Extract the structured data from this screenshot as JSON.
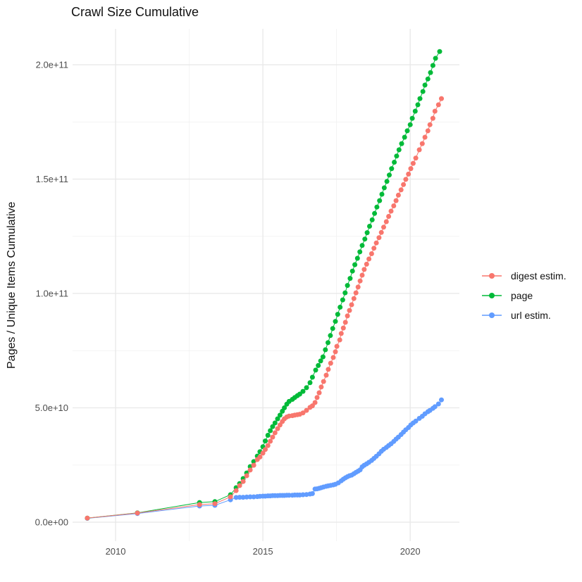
{
  "chart_data": {
    "type": "scatter",
    "title": "Crawl Size Cumulative",
    "xlabel": "",
    "ylabel": "Pages / Unique Items Cumulative",
    "grid": true,
    "legend_position": "right",
    "xlim": [
      2008.54,
      2021.67
    ],
    "ylim_e9": [
      -8.3,
      215.7
    ],
    "y_unit": "pages (values in billions, 1e9)",
    "x_ticks": [
      {
        "value": 2010,
        "label": "2010"
      },
      {
        "value": 2015,
        "label": "2015"
      },
      {
        "value": 2020,
        "label": "2020"
      }
    ],
    "x_minor_gridlines": [
      2012.5,
      2017.5
    ],
    "y_ticks": [
      {
        "value": 0,
        "label": "0.0e+00"
      },
      {
        "value": 50,
        "label": "5.0e+10"
      },
      {
        "value": 100,
        "label": "1.0e+11"
      },
      {
        "value": 150,
        "label": "1.5e+11"
      },
      {
        "value": 200,
        "label": "2.0e+11"
      }
    ],
    "y_minor_gridlines": [
      25,
      75,
      125,
      175
    ],
    "draw_order": [
      2,
      1,
      0
    ],
    "series": [
      {
        "name": "digest estim.",
        "color": "#F8766D",
        "points": [
          [
            2009.04,
            1.8
          ],
          [
            2010.74,
            4.0
          ],
          [
            2012.85,
            7.7
          ],
          [
            2013.37,
            8.1
          ],
          [
            2013.9,
            11.1
          ],
          [
            2014.09,
            13.8
          ],
          [
            2014.21,
            16.0
          ],
          [
            2014.33,
            17.8
          ],
          [
            2014.45,
            20.3
          ],
          [
            2014.57,
            22.8
          ],
          [
            2014.69,
            24.9
          ],
          [
            2014.81,
            27.4
          ],
          [
            2014.9,
            28.5
          ],
          [
            2015.0,
            30.2
          ],
          [
            2015.08,
            31.8
          ],
          [
            2015.17,
            33.5
          ],
          [
            2015.25,
            35.4
          ],
          [
            2015.33,
            37.2
          ],
          [
            2015.41,
            39.1
          ],
          [
            2015.5,
            40.9
          ],
          [
            2015.58,
            42.5
          ],
          [
            2015.66,
            44.0
          ],
          [
            2015.73,
            45.2
          ],
          [
            2015.81,
            46.0
          ],
          [
            2015.89,
            46.4
          ],
          [
            2016.0,
            46.6
          ],
          [
            2016.08,
            46.8
          ],
          [
            2016.17,
            47.0
          ],
          [
            2016.25,
            47.2
          ],
          [
            2016.36,
            47.8
          ],
          [
            2016.48,
            48.9
          ],
          [
            2016.6,
            50.2
          ],
          [
            2016.68,
            50.9
          ],
          [
            2016.77,
            52.3
          ],
          [
            2016.84,
            54.5
          ],
          [
            2016.91,
            56.6
          ],
          [
            2016.98,
            59.1
          ],
          [
            2017.06,
            61.5
          ],
          [
            2017.15,
            64.3
          ],
          [
            2017.22,
            66.8
          ],
          [
            2017.3,
            69.5
          ],
          [
            2017.39,
            72.0
          ],
          [
            2017.46,
            74.5
          ],
          [
            2017.51,
            76.9
          ],
          [
            2017.61,
            79.7
          ],
          [
            2017.66,
            82.5
          ],
          [
            2017.73,
            84.9
          ],
          [
            2017.8,
            87.4
          ],
          [
            2017.87,
            90.2
          ],
          [
            2017.94,
            92.6
          ],
          [
            2018.01,
            95.1
          ],
          [
            2018.09,
            97.8
          ],
          [
            2018.16,
            100.3
          ],
          [
            2018.23,
            102.8
          ],
          [
            2018.3,
            105.5
          ],
          [
            2018.37,
            108.0
          ],
          [
            2018.44,
            110.5
          ],
          [
            2018.52,
            112.8
          ],
          [
            2018.6,
            115.1
          ],
          [
            2018.69,
            117.4
          ],
          [
            2018.77,
            119.8
          ],
          [
            2018.85,
            122.1
          ],
          [
            2018.94,
            124.4
          ],
          [
            2019.02,
            126.7
          ],
          [
            2019.1,
            129.0
          ],
          [
            2019.19,
            131.4
          ],
          [
            2019.27,
            133.7
          ],
          [
            2019.35,
            136.0
          ],
          [
            2019.44,
            138.3
          ],
          [
            2019.52,
            140.6
          ],
          [
            2019.6,
            143.0
          ],
          [
            2019.69,
            145.3
          ],
          [
            2019.77,
            147.6
          ],
          [
            2019.85,
            149.9
          ],
          [
            2019.94,
            152.2
          ],
          [
            2020.02,
            154.6
          ],
          [
            2020.1,
            156.9
          ],
          [
            2020.19,
            159.2
          ],
          [
            2020.31,
            162.8
          ],
          [
            2020.41,
            165.5
          ],
          [
            2020.5,
            168.3
          ],
          [
            2020.6,
            171.1
          ],
          [
            2020.67,
            173.8
          ],
          [
            2020.77,
            176.6
          ],
          [
            2020.84,
            179.7
          ],
          [
            2020.96,
            182.5
          ],
          [
            2021.06,
            185.2
          ]
        ]
      },
      {
        "name": "page",
        "color": "#00BA38",
        "points": [
          [
            2009.04,
            1.8
          ],
          [
            2010.74,
            4.1
          ],
          [
            2012.85,
            8.6
          ],
          [
            2013.37,
            9.0
          ],
          [
            2013.9,
            12.0
          ],
          [
            2014.09,
            15.1
          ],
          [
            2014.21,
            16.9
          ],
          [
            2014.33,
            19.1
          ],
          [
            2014.45,
            21.5
          ],
          [
            2014.57,
            24.3
          ],
          [
            2014.69,
            26.5
          ],
          [
            2014.81,
            28.9
          ],
          [
            2014.9,
            30.8
          ],
          [
            2015.0,
            33.0
          ],
          [
            2015.08,
            35.5
          ],
          [
            2015.17,
            38.0
          ],
          [
            2015.25,
            40.0
          ],
          [
            2015.33,
            41.8
          ],
          [
            2015.41,
            43.4
          ],
          [
            2015.5,
            45.2
          ],
          [
            2015.58,
            46.8
          ],
          [
            2015.66,
            48.5
          ],
          [
            2015.73,
            50.0
          ],
          [
            2015.81,
            51.6
          ],
          [
            2015.89,
            52.8
          ],
          [
            2016.0,
            53.7
          ],
          [
            2016.08,
            54.5
          ],
          [
            2016.17,
            55.3
          ],
          [
            2016.25,
            56.0
          ],
          [
            2016.36,
            57.2
          ],
          [
            2016.48,
            58.8
          ],
          [
            2016.6,
            61.0
          ],
          [
            2016.68,
            63.4
          ],
          [
            2016.79,
            66.5
          ],
          [
            2016.88,
            68.5
          ],
          [
            2016.96,
            70.5
          ],
          [
            2017.04,
            72.3
          ],
          [
            2017.12,
            75.4
          ],
          [
            2017.21,
            78.5
          ],
          [
            2017.29,
            81.6
          ],
          [
            2017.37,
            84.7
          ],
          [
            2017.46,
            87.8
          ],
          [
            2017.54,
            90.9
          ],
          [
            2017.62,
            94.0
          ],
          [
            2017.71,
            97.2
          ],
          [
            2017.79,
            100.3
          ],
          [
            2017.87,
            103.5
          ],
          [
            2017.96,
            106.6
          ],
          [
            2018.04,
            109.8
          ],
          [
            2018.12,
            112.6
          ],
          [
            2018.21,
            115.4
          ],
          [
            2018.29,
            118.2
          ],
          [
            2018.37,
            121.0
          ],
          [
            2018.46,
            123.8
          ],
          [
            2018.54,
            126.6
          ],
          [
            2018.62,
            129.4
          ],
          [
            2018.71,
            132.2
          ],
          [
            2018.79,
            135.0
          ],
          [
            2018.87,
            137.8
          ],
          [
            2018.96,
            140.6
          ],
          [
            2019.04,
            143.4
          ],
          [
            2019.12,
            146.2
          ],
          [
            2019.21,
            149.0
          ],
          [
            2019.29,
            151.8
          ],
          [
            2019.37,
            154.6
          ],
          [
            2019.46,
            157.4
          ],
          [
            2019.54,
            160.1
          ],
          [
            2019.62,
            162.8
          ],
          [
            2019.71,
            165.5
          ],
          [
            2019.81,
            168.3
          ],
          [
            2019.9,
            171.1
          ],
          [
            2020.0,
            173.8
          ],
          [
            2020.07,
            176.6
          ],
          [
            2020.17,
            179.7
          ],
          [
            2020.26,
            182.5
          ],
          [
            2020.33,
            185.2
          ],
          [
            2020.43,
            188.3
          ],
          [
            2020.5,
            191.1
          ],
          [
            2020.6,
            193.8
          ],
          [
            2020.69,
            196.6
          ],
          [
            2020.77,
            199.7
          ],
          [
            2020.86,
            202.8
          ],
          [
            2021.0,
            205.8
          ]
        ]
      },
      {
        "name": "url estim.",
        "color": "#619CFF",
        "points": [
          [
            2009.04,
            1.7
          ],
          [
            2010.74,
            3.8
          ],
          [
            2012.85,
            7.1
          ],
          [
            2013.37,
            7.4
          ],
          [
            2013.9,
            9.8
          ],
          [
            2014.09,
            10.8
          ],
          [
            2014.21,
            10.9
          ],
          [
            2014.33,
            10.9
          ],
          [
            2014.45,
            11.0
          ],
          [
            2014.57,
            11.1
          ],
          [
            2014.69,
            11.1
          ],
          [
            2014.81,
            11.2
          ],
          [
            2014.9,
            11.3
          ],
          [
            2015.0,
            11.4
          ],
          [
            2015.08,
            11.4
          ],
          [
            2015.17,
            11.5
          ],
          [
            2015.25,
            11.5
          ],
          [
            2015.33,
            11.6
          ],
          [
            2015.41,
            11.6
          ],
          [
            2015.5,
            11.6
          ],
          [
            2015.58,
            11.7
          ],
          [
            2015.66,
            11.7
          ],
          [
            2015.73,
            11.7
          ],
          [
            2015.81,
            11.8
          ],
          [
            2015.89,
            11.8
          ],
          [
            2016.0,
            11.8
          ],
          [
            2016.08,
            11.9
          ],
          [
            2016.17,
            11.9
          ],
          [
            2016.25,
            11.9
          ],
          [
            2016.36,
            12.0
          ],
          [
            2016.48,
            12.1
          ],
          [
            2016.6,
            12.3
          ],
          [
            2016.68,
            12.5
          ],
          [
            2016.77,
            14.5
          ],
          [
            2016.84,
            14.6
          ],
          [
            2016.91,
            14.8
          ],
          [
            2016.98,
            15.1
          ],
          [
            2017.06,
            15.4
          ],
          [
            2017.15,
            15.7
          ],
          [
            2017.22,
            15.9
          ],
          [
            2017.3,
            16.1
          ],
          [
            2017.39,
            16.3
          ],
          [
            2017.46,
            16.6
          ],
          [
            2017.56,
            17.2
          ],
          [
            2017.66,
            18.1
          ],
          [
            2017.73,
            18.8
          ],
          [
            2017.8,
            19.4
          ],
          [
            2017.87,
            19.9
          ],
          [
            2017.94,
            20.3
          ],
          [
            2018.01,
            20.6
          ],
          [
            2018.09,
            21.2
          ],
          [
            2018.16,
            21.8
          ],
          [
            2018.23,
            22.3
          ],
          [
            2018.3,
            22.9
          ],
          [
            2018.37,
            24.2
          ],
          [
            2018.44,
            24.9
          ],
          [
            2018.52,
            25.5
          ],
          [
            2018.6,
            26.2
          ],
          [
            2018.69,
            27.0
          ],
          [
            2018.77,
            27.9
          ],
          [
            2018.85,
            28.8
          ],
          [
            2018.94,
            29.9
          ],
          [
            2019.02,
            31.0
          ],
          [
            2019.1,
            31.9
          ],
          [
            2019.19,
            32.7
          ],
          [
            2019.27,
            33.5
          ],
          [
            2019.35,
            34.3
          ],
          [
            2019.44,
            35.3
          ],
          [
            2019.52,
            36.3
          ],
          [
            2019.6,
            37.2
          ],
          [
            2019.69,
            38.3
          ],
          [
            2019.77,
            39.4
          ],
          [
            2019.85,
            40.4
          ],
          [
            2019.94,
            41.4
          ],
          [
            2020.02,
            42.5
          ],
          [
            2020.1,
            43.4
          ],
          [
            2020.19,
            44.2
          ],
          [
            2020.31,
            45.4
          ],
          [
            2020.41,
            46.3
          ],
          [
            2020.5,
            47.4
          ],
          [
            2020.6,
            48.3
          ],
          [
            2020.67,
            48.9
          ],
          [
            2020.77,
            49.8
          ],
          [
            2020.84,
            50.5
          ],
          [
            2020.96,
            51.7
          ],
          [
            2021.06,
            53.5
          ]
        ]
      }
    ],
    "style": {
      "major_grid_color": "#e8e8e8",
      "minor_grid_color": "#f2f2f2",
      "point_radius": 3.5,
      "background": "#ffffff"
    }
  },
  "legend": {
    "entries": [
      {
        "label": "digest estim.",
        "color": "#F8766D"
      },
      {
        "label": "page",
        "color": "#00BA38"
      },
      {
        "label": "url estim.",
        "color": "#619CFF"
      }
    ]
  }
}
